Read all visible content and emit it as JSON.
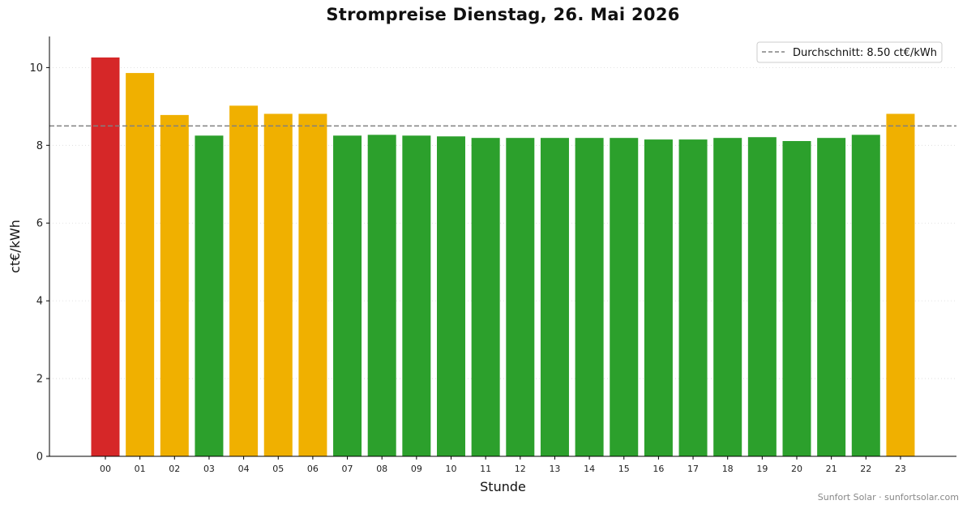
{
  "chart_data": {
    "type": "bar",
    "title": "Strompreise Dienstag, 26. Mai 2026",
    "xlabel": "Stunde",
    "ylabel": "ct€/kWh",
    "ylim": [
      0,
      10.8
    ],
    "yticks": [
      0,
      2,
      4,
      6,
      8,
      10
    ],
    "grid": "horizontal dotted",
    "legend_position": "top-right",
    "categories": [
      "00",
      "01",
      "02",
      "03",
      "04",
      "05",
      "06",
      "07",
      "08",
      "09",
      "10",
      "11",
      "12",
      "13",
      "14",
      "15",
      "16",
      "17",
      "18",
      "19",
      "20",
      "21",
      "22",
      "23"
    ],
    "values": [
      10.26,
      9.86,
      8.78,
      8.25,
      9.02,
      8.81,
      8.81,
      8.25,
      8.27,
      8.25,
      8.23,
      8.19,
      8.19,
      8.19,
      8.19,
      8.19,
      8.15,
      8.15,
      8.19,
      8.21,
      8.11,
      8.19,
      8.27,
      8.81
    ],
    "bar_colors": [
      "#d62728",
      "#f0b000",
      "#f0b000",
      "#2ca02c",
      "#f0b000",
      "#f0b000",
      "#f0b000",
      "#2ca02c",
      "#2ca02c",
      "#2ca02c",
      "#2ca02c",
      "#2ca02c",
      "#2ca02c",
      "#2ca02c",
      "#2ca02c",
      "#2ca02c",
      "#2ca02c",
      "#2ca02c",
      "#2ca02c",
      "#2ca02c",
      "#2ca02c",
      "#2ca02c",
      "#2ca02c",
      "#f0b000"
    ],
    "average": {
      "value": 8.5,
      "label": "Durchschnitt: 8.50 ct€/kWh",
      "color": "#808080"
    }
  },
  "footer": "Sunfort Solar · sunfortsolar.com"
}
